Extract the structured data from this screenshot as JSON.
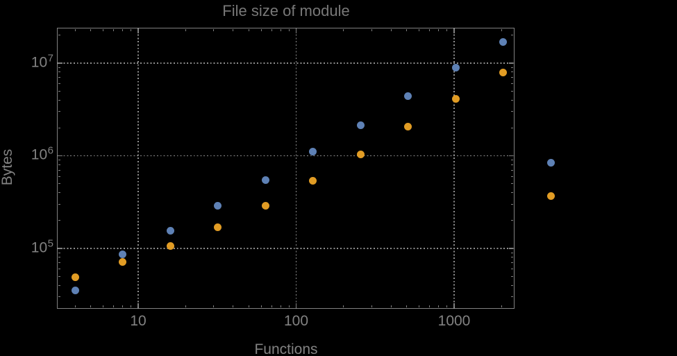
{
  "chart_data": {
    "type": "scatter",
    "title": "File size of module",
    "xlabel": "Functions",
    "ylabel": "Bytes",
    "x_scale": "log",
    "y_scale": "log",
    "xlim": [
      3.06,
      2412
    ],
    "ylim": [
      22300,
      24100000
    ],
    "grid": "dotted gridlines at decade ticks only",
    "legend_position": "none",
    "frame": true,
    "x_ticks": {
      "major": [
        {
          "value": 10,
          "label": "10"
        },
        {
          "value": 100,
          "label": "100"
        },
        {
          "value": 1000,
          "label": "1000"
        }
      ],
      "minor": [
        4,
        5,
        6,
        7,
        8,
        9,
        20,
        30,
        40,
        50,
        60,
        70,
        80,
        90,
        200,
        300,
        400,
        500,
        600,
        700,
        800,
        900,
        2000
      ]
    },
    "y_ticks": {
      "major": [
        {
          "value": 100000,
          "label": "10^5"
        },
        {
          "value": 1000000,
          "label": "10^6"
        },
        {
          "value": 10000000,
          "label": "10^7"
        }
      ],
      "minor": [
        30000,
        40000,
        50000,
        60000,
        70000,
        80000,
        90000,
        200000,
        300000,
        400000,
        500000,
        600000,
        700000,
        800000,
        900000,
        2000000,
        3000000,
        4000000,
        5000000,
        6000000,
        7000000,
        8000000,
        9000000,
        20000000
      ]
    },
    "series": [
      {
        "name": "series-1-blue",
        "color": "#5e81b5",
        "marker": "circle",
        "marker_size_px": 11,
        "points": [
          [
            4,
            35000
          ],
          [
            8,
            87000
          ],
          [
            16,
            154000
          ],
          [
            32,
            290000
          ],
          [
            64,
            550000
          ],
          [
            128,
            1100000
          ],
          [
            256,
            2120000
          ],
          [
            512,
            4400000
          ],
          [
            1024,
            8900000
          ],
          [
            2048,
            17000000
          ],
          [
            4096,
            840000
          ]
        ]
      },
      {
        "name": "series-2-orange",
        "color": "#e19c24",
        "marker": "circle",
        "marker_size_px": 11,
        "points": [
          [
            4,
            49000
          ],
          [
            8,
            71000
          ],
          [
            16,
            107000
          ],
          [
            32,
            170000
          ],
          [
            64,
            290000
          ],
          [
            128,
            540000
          ],
          [
            256,
            1030000
          ],
          [
            512,
            2050000
          ],
          [
            1024,
            4100000
          ],
          [
            2048,
            7900000
          ],
          [
            4096,
            365000
          ]
        ]
      }
    ],
    "colors": {
      "frame": "#818181",
      "grid": "#8f8f8f",
      "tick_text": "#828282",
      "title_text": "#787878",
      "background": "#000000"
    }
  }
}
